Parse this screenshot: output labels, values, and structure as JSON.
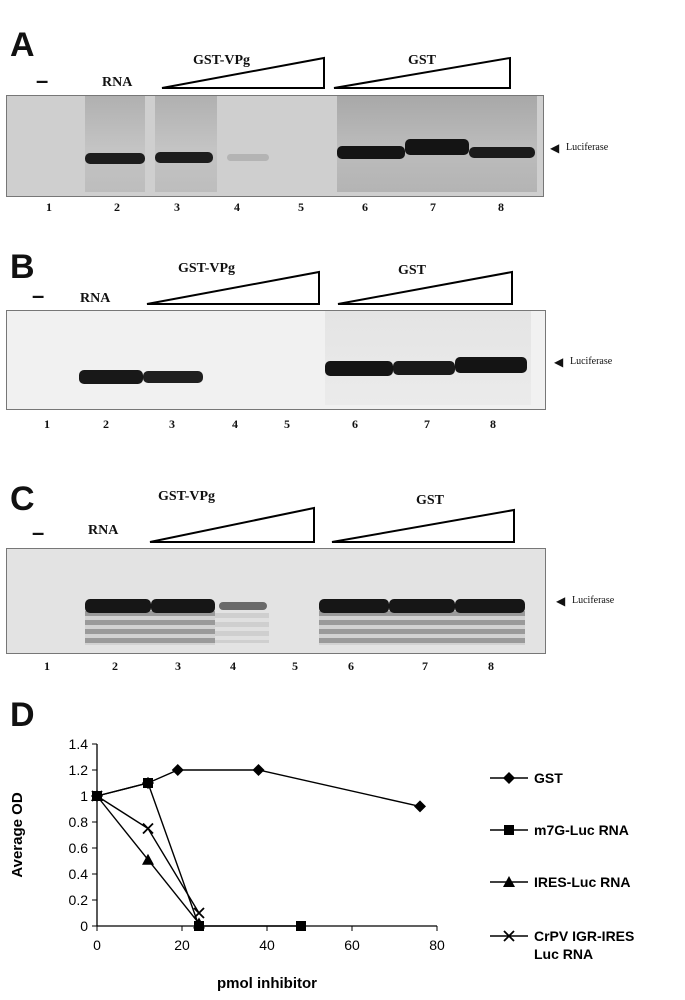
{
  "panels": {
    "A": {
      "letter": "A",
      "minus": "–",
      "rna": "RNA",
      "gst_vpg": "GST-VPg",
      "gst": "GST",
      "band": "Luciferase",
      "lanes": [
        "1",
        "2",
        "3",
        "4",
        "5",
        "6",
        "7",
        "8"
      ]
    },
    "B": {
      "letter": "B",
      "minus": "–",
      "rna": "RNA",
      "gst_vpg": "GST-VPg",
      "gst": "GST",
      "band": "Luciferase",
      "lanes": [
        "1",
        "2",
        "3",
        "4",
        "5",
        "6",
        "7",
        "8"
      ]
    },
    "C": {
      "letter": "C",
      "minus": "–",
      "rna": "RNA",
      "gst_vpg": "GST-VPg",
      "gst": "GST",
      "band": "Luciferase",
      "lanes": [
        "1",
        "2",
        "3",
        "4",
        "5",
        "6",
        "7",
        "8"
      ]
    }
  },
  "panel_d": {
    "letter": "D"
  },
  "chart_data": {
    "type": "line",
    "title": "",
    "xlabel": "pmol inhibitor",
    "ylabel": "Average OD",
    "xlim": [
      0,
      80
    ],
    "ylim": [
      0,
      1.4
    ],
    "x_ticks": [
      0,
      20,
      40,
      60,
      80
    ],
    "y_ticks": [
      0,
      0.2,
      0.4,
      0.6,
      0.8,
      1,
      1.2,
      1.4
    ],
    "x_tick_labels": [
      "0",
      "20",
      "40",
      "60",
      "80"
    ],
    "y_tick_labels": [
      "0",
      "0.2",
      "0.4",
      "0.6",
      "0.8",
      "1",
      "1.2",
      "1.4"
    ],
    "grid": false,
    "legend_position": "right",
    "series": [
      {
        "name": "GST",
        "marker": "diamond",
        "x": [
          0,
          12,
          19,
          38,
          76
        ],
        "y": [
          1.0,
          1.1,
          1.2,
          1.2,
          0.92
        ]
      },
      {
        "name": "m7G-Luc RNA",
        "marker": "square",
        "x": [
          0,
          12,
          24,
          48
        ],
        "y": [
          1.0,
          1.1,
          0.0,
          0.0
        ]
      },
      {
        "name": "IRES-Luc RNA",
        "marker": "triangle",
        "x": [
          0,
          12,
          24
        ],
        "y": [
          1.0,
          0.51,
          0.02
        ]
      },
      {
        "name": "CrPV IGR-IRES\nLuc RNA",
        "marker": "x",
        "x": [
          0,
          12,
          24
        ],
        "y": [
          1.0,
          0.75,
          0.1
        ]
      }
    ]
  }
}
